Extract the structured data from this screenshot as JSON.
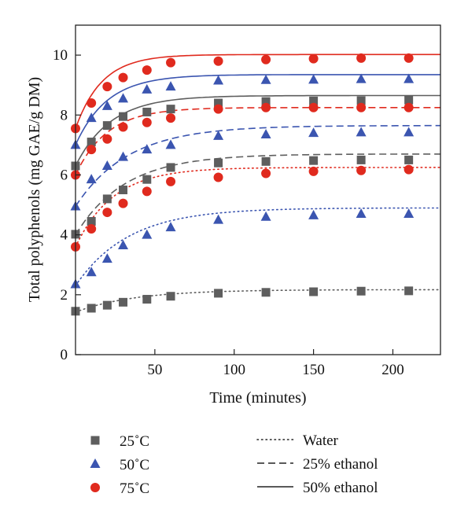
{
  "chart_data": {
    "type": "scatter",
    "title": "",
    "xlabel": "Time (minutes)",
    "ylabel": "Total polyphenols (mg GAE/g DM)",
    "xlim": [
      0,
      230
    ],
    "ylim": [
      0,
      11
    ],
    "xticks": [
      50,
      100,
      150,
      200
    ],
    "yticks": [
      0,
      2,
      4,
      6,
      8,
      10
    ],
    "grid": false,
    "legend_position": "bottom",
    "temperature_legend": [
      {
        "label": "25˚C",
        "marker": "square",
        "color": "#5e5e5e"
      },
      {
        "label": "50˚C",
        "marker": "triangle",
        "color": "#3b55b0"
      },
      {
        "label": "75˚C",
        "marker": "circle",
        "color": "#e02a1e"
      }
    ],
    "solvent_legend": [
      {
        "label": "Water",
        "dash": "dotted"
      },
      {
        "label": "25% ethanol",
        "dash": "dashed"
      },
      {
        "label": "50% ethanol",
        "dash": "solid"
      }
    ],
    "x": [
      0,
      10,
      20,
      30,
      45,
      60,
      90,
      120,
      150,
      180,
      210
    ],
    "series": [
      {
        "temperature": "25˚C",
        "solvent": "Water",
        "marker": "square",
        "color": "#5e5e5e",
        "dash": "dotted",
        "y": [
          1.45,
          1.55,
          1.65,
          1.75,
          1.85,
          1.95,
          2.05,
          2.08,
          2.1,
          2.12,
          2.13
        ],
        "fit": {
          "y0": 1.42,
          "ymax": 2.17,
          "k": 0.027
        }
      },
      {
        "temperature": "25˚C",
        "solvent": "25% ethanol",
        "marker": "square",
        "color": "#5e5e5e",
        "dash": "dashed",
        "y": [
          4.02,
          4.45,
          5.2,
          5.5,
          5.85,
          6.25,
          6.4,
          6.45,
          6.48,
          6.5,
          6.5
        ],
        "fit": {
          "y0": 4.0,
          "ymax": 6.7,
          "k": 0.032
        }
      },
      {
        "temperature": "25˚C",
        "solvent": "50% ethanol",
        "marker": "square",
        "color": "#5e5e5e",
        "dash": "solid",
        "y": [
          6.3,
          7.1,
          7.65,
          7.95,
          8.1,
          8.2,
          8.4,
          8.45,
          8.47,
          8.48,
          8.5
        ],
        "fit": {
          "y0": 6.3,
          "ymax": 8.65,
          "k": 0.045
        }
      },
      {
        "temperature": "50˚C",
        "solvent": "Water",
        "marker": "triangle",
        "color": "#3b55b0",
        "dash": "dotted",
        "y": [
          2.35,
          2.75,
          3.2,
          3.65,
          4.0,
          4.25,
          4.5,
          4.6,
          4.65,
          4.7,
          4.7
        ],
        "fit": {
          "y0": 2.3,
          "ymax": 4.9,
          "k": 0.03
        }
      },
      {
        "temperature": "50˚C",
        "solvent": "25% ethanol",
        "marker": "triangle",
        "color": "#3b55b0",
        "dash": "dashed",
        "y": [
          4.95,
          5.85,
          6.3,
          6.6,
          6.85,
          7.0,
          7.3,
          7.35,
          7.4,
          7.42,
          7.42
        ],
        "fit": {
          "y0": 4.95,
          "ymax": 7.65,
          "k": 0.03
        }
      },
      {
        "temperature": "50˚C",
        "solvent": "50% ethanol",
        "marker": "triangle",
        "color": "#3b55b0",
        "dash": "solid",
        "y": [
          7.0,
          7.9,
          8.3,
          8.55,
          8.85,
          8.95,
          9.15,
          9.17,
          9.18,
          9.2,
          9.2
        ],
        "fit": {
          "y0": 7.0,
          "ymax": 9.35,
          "k": 0.05
        }
      },
      {
        "temperature": "75˚C",
        "solvent": "Water",
        "marker": "circle",
        "color": "#e02a1e",
        "dash": "dotted",
        "y": [
          3.6,
          4.2,
          4.75,
          5.05,
          5.45,
          5.78,
          5.92,
          6.05,
          6.12,
          6.15,
          6.18
        ],
        "fit": {
          "y0": 3.6,
          "ymax": 6.25,
          "k": 0.042
        }
      },
      {
        "temperature": "75˚C",
        "solvent": "25% ethanol",
        "marker": "circle",
        "color": "#e02a1e",
        "dash": "dashed",
        "y": [
          6.0,
          6.85,
          7.2,
          7.6,
          7.75,
          7.9,
          8.2,
          8.25,
          8.25,
          8.25,
          8.25
        ],
        "fit": {
          "y0": 6.0,
          "ymax": 8.25,
          "k": 0.05
        }
      },
      {
        "temperature": "75˚C",
        "solvent": "50% ethanol",
        "marker": "circle",
        "color": "#e02a1e",
        "dash": "solid",
        "y": [
          7.55,
          8.4,
          8.95,
          9.25,
          9.5,
          9.75,
          9.8,
          9.85,
          9.88,
          9.9,
          9.9
        ],
        "fit": {
          "y0": 7.55,
          "ymax": 10.02,
          "k": 0.06
        }
      }
    ]
  }
}
